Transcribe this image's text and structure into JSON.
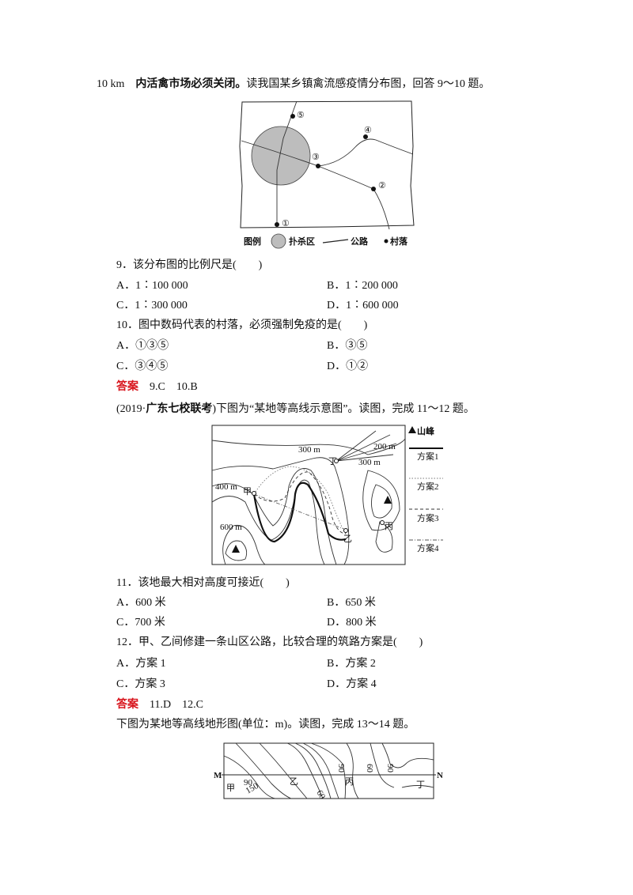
{
  "intro": {
    "prefix": "10 km",
    "bold": "内活禽市场必须关闭。",
    "text": "读我国某乡镇禽流感疫情分布图，回答 9～10 题。"
  },
  "map1": {
    "labels": [
      "①",
      "②",
      "③",
      "④",
      "⑤"
    ],
    "legend": {
      "title": "图例",
      "items": [
        "扑杀区",
        "公路",
        "村落"
      ]
    }
  },
  "q9": {
    "stem": "9．该分布图的比例尺是(　　)",
    "options": [
      "A．1∶100 000",
      "B．1∶200 000",
      "C．1∶300 000",
      "D．1∶600 000"
    ]
  },
  "q10": {
    "stem": "10．图中数码代表的村落，必须强制免疫的是(　　)",
    "options": [
      "A．①③⑤",
      "B．③⑤",
      "C．③④⑤",
      "D．①②"
    ]
  },
  "answer1": {
    "label": "答案",
    "text": "9.C　10.B"
  },
  "intro2": {
    "source_open": "(2019·",
    "source": "广东七校联考",
    "text": ")下图为“某地等高线示意图”。读图，完成 11～12 题。"
  },
  "map2": {
    "contours": [
      "300 m",
      "200 m",
      "300 m",
      "400 m",
      "600 m"
    ],
    "places": [
      "丁",
      "甲",
      "乙",
      "丙"
    ],
    "legend": [
      "山峰",
      "方案1",
      "方案2",
      "方案3",
      "方案4"
    ]
  },
  "q11": {
    "stem": "11．该地最大相对高度可接近(　　)",
    "options": [
      "A．600 米",
      "B．650 米",
      "C．700 米",
      "D．800 米"
    ]
  },
  "q12": {
    "stem": "12．甲、乙间修建一条山区公路，比较合理的筑路方案是(　　)",
    "options": [
      "A．方案 1",
      "B．方案 2",
      "C．方案 3",
      "D．方案 4"
    ]
  },
  "answer2": {
    "label": "答案",
    "text": "11.D　12.C"
  },
  "intro3": {
    "text": "下图为某地等高线地形图(单位：m)。读图，完成 13～14 题。"
  },
  "map3": {
    "ends": [
      "M",
      "N"
    ],
    "places": [
      "甲",
      "乙",
      "丙",
      "丁"
    ],
    "contours": [
      "90",
      "150",
      "90",
      "60",
      "90",
      "60"
    ]
  }
}
